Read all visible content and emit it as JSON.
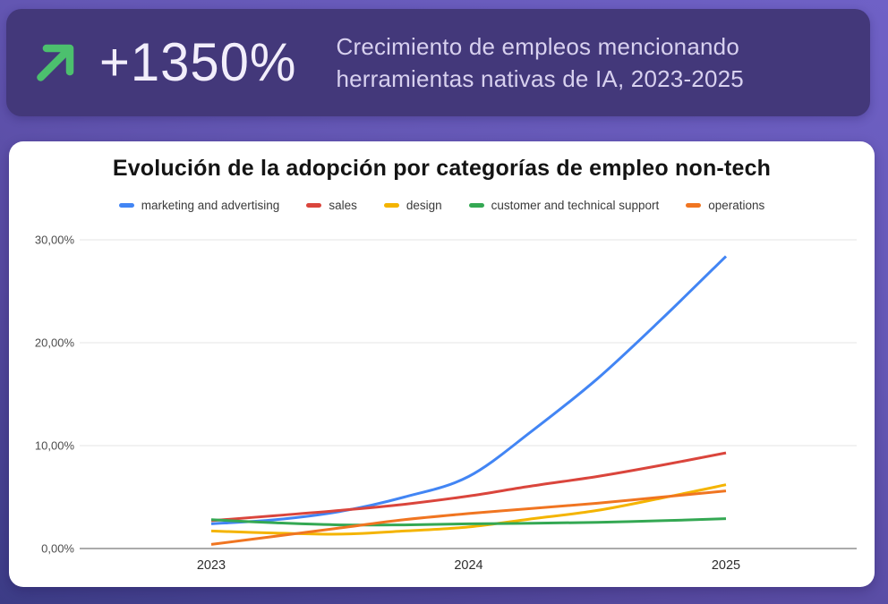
{
  "banner": {
    "stat": "+1350%",
    "description_line1": "Crecimiento de empleos mencionando",
    "description_line2": "herramientas nativas de IA, 2023-2025",
    "arrow_icon": "arrow-up-right",
    "arrow_color": "#4cc06e",
    "background": "#43387a",
    "stat_color": "#f2eefb",
    "description_color": "#d8d1ef"
  },
  "chart": {
    "card_background": "#ffffff",
    "chart_data": {
      "type": "line",
      "title": "Evolución de la adopción por categorías de empleo non-tech",
      "x": [
        2023,
        2023.25,
        2023.5,
        2023.75,
        2024,
        2024.25,
        2024.5,
        2024.75,
        2025
      ],
      "xlim": [
        2023,
        2025
      ],
      "ylim": [
        0,
        30
      ],
      "grid": true,
      "legend_position": "top",
      "x_ticks": [
        {
          "label": "2023",
          "value": 2023
        },
        {
          "label": "2024",
          "value": 2024
        },
        {
          "label": "2025",
          "value": 2025
        }
      ],
      "y_ticks": [
        {
          "label": "30,00%",
          "value": 30
        },
        {
          "label": "20,00%",
          "value": 20
        },
        {
          "label": "10,00%",
          "value": 10
        },
        {
          "label": "0,00%",
          "value": 0
        }
      ],
      "series": [
        {
          "name": "marketing and advertising",
          "color": "#4285f4",
          "values": [
            2.4,
            2.8,
            3.6,
            5.0,
            7.0,
            11.5,
            16.5,
            22.3,
            28.4
          ]
        },
        {
          "name": "sales",
          "color": "#da453c",
          "values": [
            2.7,
            3.2,
            3.7,
            4.3,
            5.1,
            6.1,
            7.0,
            8.1,
            9.3
          ]
        },
        {
          "name": "design",
          "color": "#f4b400",
          "values": [
            1.7,
            1.5,
            1.4,
            1.7,
            2.1,
            2.9,
            3.7,
            4.9,
            6.2
          ]
        },
        {
          "name": "customer and technical support",
          "color": "#34a853",
          "values": [
            2.8,
            2.5,
            2.3,
            2.3,
            2.4,
            2.45,
            2.55,
            2.7,
            2.9
          ]
        },
        {
          "name": "operations",
          "color": "#f07521",
          "values": [
            0.4,
            1.2,
            2.0,
            2.8,
            3.4,
            3.9,
            4.4,
            5.0,
            5.6
          ]
        }
      ]
    }
  }
}
